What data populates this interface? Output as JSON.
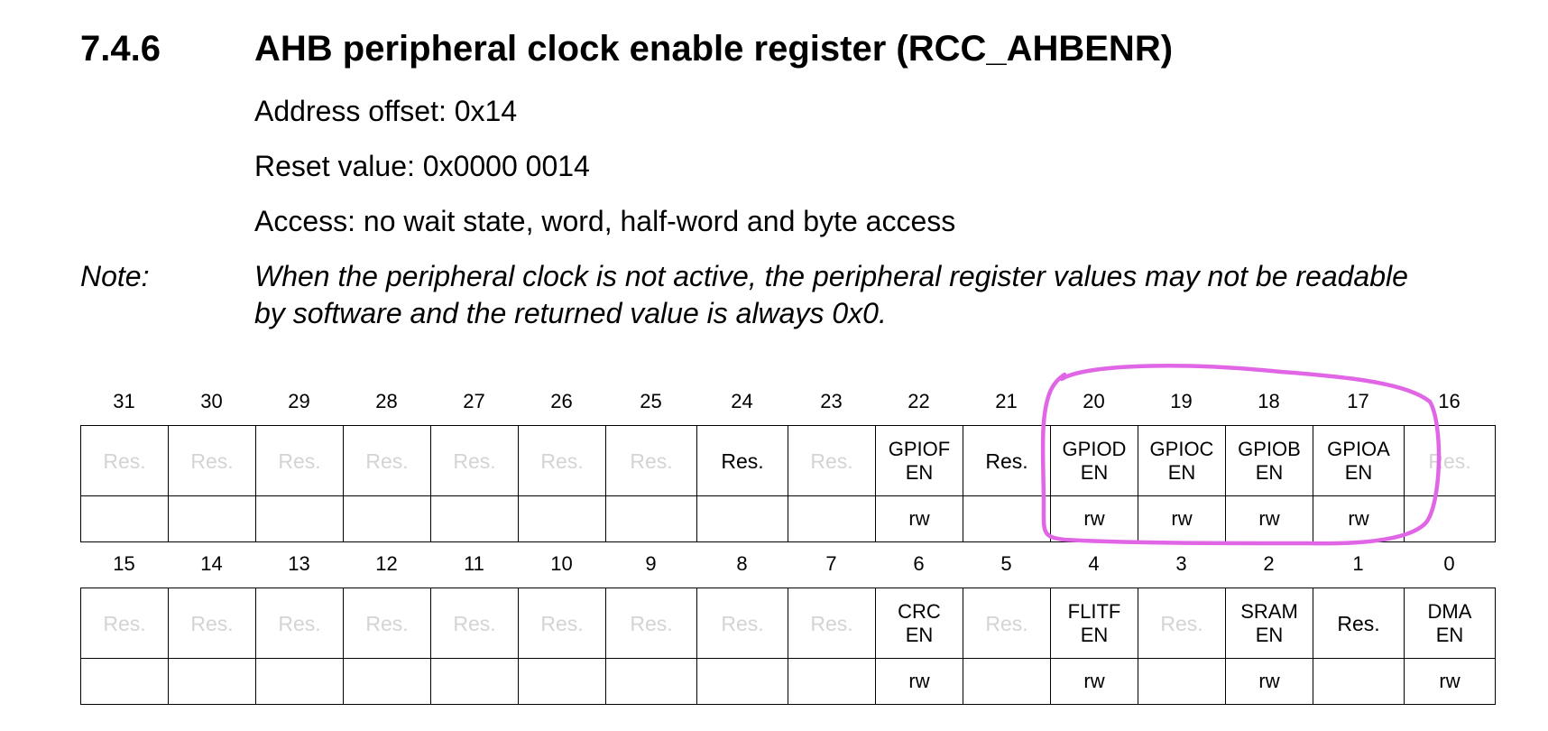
{
  "section": {
    "number": "7.4.6",
    "title": "AHB peripheral clock enable register (RCC_AHBENR)"
  },
  "meta": {
    "address": "Address offset: 0x14",
    "reset": "Reset value: 0x0000 0014",
    "access": "Access: no wait state, word, half-word and byte access"
  },
  "note": {
    "label": "Note:",
    "line1": "When the peripheral clock is not active, the peripheral register values may not be readable",
    "line2": "by software and the returned value is always 0x0."
  },
  "upper": {
    "bits": [
      "31",
      "30",
      "29",
      "28",
      "27",
      "26",
      "25",
      "24",
      "23",
      "22",
      "21",
      "20",
      "19",
      "18",
      "17",
      "16"
    ],
    "fields": [
      {
        "l1": "Res.",
        "l2": "",
        "style": "ghost"
      },
      {
        "l1": "Res.",
        "l2": "",
        "style": "ghost"
      },
      {
        "l1": "Res.",
        "l2": "",
        "style": "ghost"
      },
      {
        "l1": "Res.",
        "l2": "",
        "style": "ghost"
      },
      {
        "l1": "Res.",
        "l2": "",
        "style": "ghost"
      },
      {
        "l1": "Res.",
        "l2": "",
        "style": "ghost"
      },
      {
        "l1": "Res.",
        "l2": "",
        "style": "ghost"
      },
      {
        "l1": "Res.",
        "l2": "",
        "style": "res"
      },
      {
        "l1": "Res.",
        "l2": "",
        "style": "ghost"
      },
      {
        "l1": "GPIOF",
        "l2": "EN",
        "style": "field"
      },
      {
        "l1": "Res.",
        "l2": "",
        "style": "res"
      },
      {
        "l1": "GPIOD",
        "l2": "EN",
        "style": "field"
      },
      {
        "l1": "GPIOC",
        "l2": "EN",
        "style": "field"
      },
      {
        "l1": "GPIOB",
        "l2": "EN",
        "style": "field"
      },
      {
        "l1": "GPIOA",
        "l2": "EN",
        "style": "field"
      },
      {
        "l1": "Res.",
        "l2": "",
        "style": "ghost"
      }
    ],
    "access": [
      "",
      "",
      "",
      "",
      "",
      "",
      "",
      "",
      "",
      "rw",
      "",
      "rw",
      "rw",
      "rw",
      "rw",
      ""
    ]
  },
  "lower": {
    "bits": [
      "15",
      "14",
      "13",
      "12",
      "11",
      "10",
      "9",
      "8",
      "7",
      "6",
      "5",
      "4",
      "3",
      "2",
      "1",
      "0"
    ],
    "fields": [
      {
        "l1": "Res.",
        "l2": "",
        "style": "ghost"
      },
      {
        "l1": "Res.",
        "l2": "",
        "style": "ghost"
      },
      {
        "l1": "Res.",
        "l2": "",
        "style": "ghost"
      },
      {
        "l1": "Res.",
        "l2": "",
        "style": "ghost"
      },
      {
        "l1": "Res.",
        "l2": "",
        "style": "ghost"
      },
      {
        "l1": "Res.",
        "l2": "",
        "style": "ghost"
      },
      {
        "l1": "Res.",
        "l2": "",
        "style": "ghost"
      },
      {
        "l1": "Res.",
        "l2": "",
        "style": "ghost"
      },
      {
        "l1": "Res.",
        "l2": "",
        "style": "ghost"
      },
      {
        "l1": "CRC",
        "l2": "EN",
        "style": "field"
      },
      {
        "l1": "Res.",
        "l2": "",
        "style": "ghost"
      },
      {
        "l1": "FLITF",
        "l2": "EN",
        "style": "field"
      },
      {
        "l1": "Res.",
        "l2": "",
        "style": "ghost"
      },
      {
        "l1": "SRAM",
        "l2": "EN",
        "style": "field"
      },
      {
        "l1": "Res.",
        "l2": "",
        "style": "res"
      },
      {
        "l1": "DMA",
        "l2": "EN",
        "style": "field"
      }
    ],
    "access": [
      "",
      "",
      "",
      "",
      "",
      "",
      "",
      "",
      "",
      "rw",
      "",
      "rw",
      "",
      "rw",
      "",
      "rw"
    ]
  },
  "colors": {
    "highlight": "#e066e6",
    "ghost_text": "#d4d4d4",
    "text": "#000000"
  }
}
